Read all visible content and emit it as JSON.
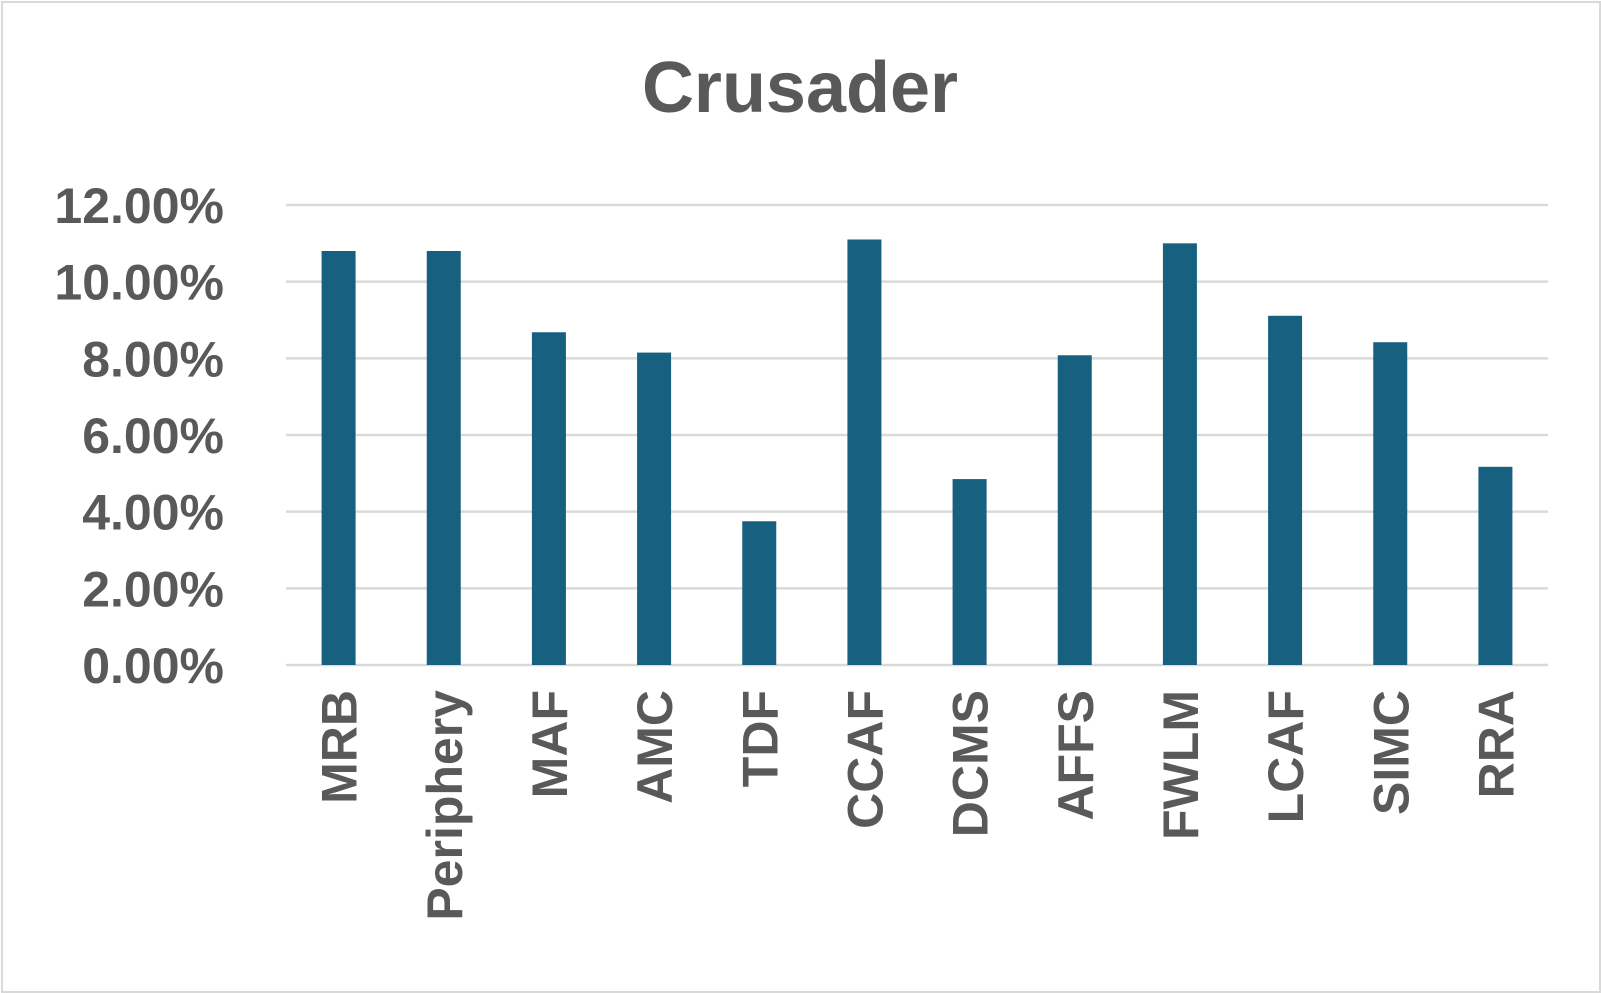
{
  "chart_data": {
    "type": "bar",
    "title": "Crusader",
    "xlabel": "",
    "ylabel": "",
    "categories": [
      "MRB",
      "Periphery",
      "MAF",
      "AMC",
      "TDF",
      "CCAF",
      "DCMS",
      "AFFS",
      "FWLM",
      "LCAF",
      "SIMC",
      "RRA"
    ],
    "values": [
      0.108,
      0.108,
      0.0868,
      0.0815,
      0.0375,
      0.111,
      0.0485,
      0.0808,
      0.11,
      0.0911,
      0.0842,
      0.0517
    ],
    "ylim": [
      0,
      0.12
    ],
    "yticks": [
      0,
      0.02,
      0.04,
      0.06,
      0.08,
      0.1,
      0.12
    ],
    "ytick_labels": [
      "0.00%",
      "2.00%",
      "4.00%",
      "6.00%",
      "8.00%",
      "10.00%",
      "12.00%"
    ],
    "grid": true,
    "legend": "none",
    "bar_color": "#17607f",
    "grid_color": "#d9d9d9",
    "text_color": "#595959"
  }
}
